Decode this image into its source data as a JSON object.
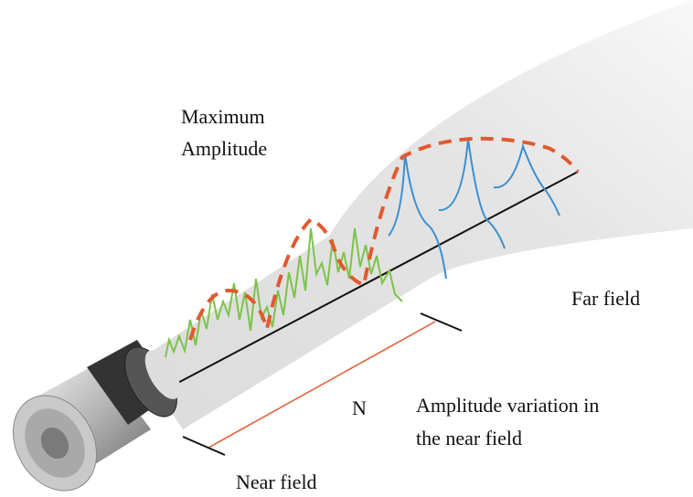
{
  "labels": {
    "max_amplitude": [
      "Maximum",
      "Amplitude"
    ],
    "far_field": "Far field",
    "n": "N",
    "amplitude_variation": [
      "Amplitude variation in",
      "the near field"
    ],
    "near_field": "Near field"
  }
}
